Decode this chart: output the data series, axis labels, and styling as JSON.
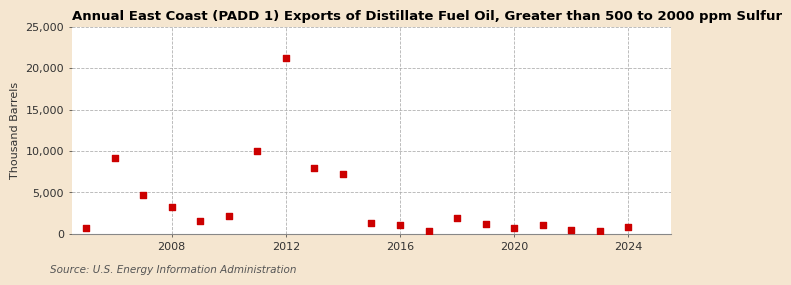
{
  "title": "Annual East Coast (PADD 1) Exports of Distillate Fuel Oil, Greater than 500 to 2000 ppm Sulfur",
  "ylabel": "Thousand Barrels",
  "source": "Source: U.S. Energy Information Administration",
  "figure_bg_color": "#f5e6d0",
  "plot_bg_color": "#ffffff",
  "marker_color": "#cc0000",
  "grid_color": "#aaaaaa",
  "years": [
    2005,
    2006,
    2007,
    2008,
    2009,
    2010,
    2011,
    2012,
    2013,
    2014,
    2015,
    2016,
    2017,
    2018,
    2019,
    2020,
    2021,
    2022,
    2023,
    2024
  ],
  "values": [
    700,
    9100,
    4700,
    3200,
    1500,
    2200,
    10000,
    21200,
    7900,
    7200,
    1300,
    1100,
    400,
    1900,
    1200,
    700,
    1100,
    500,
    300,
    800
  ],
  "xlim": [
    2004.5,
    2025.5
  ],
  "ylim": [
    0,
    25000
  ],
  "yticks": [
    0,
    5000,
    10000,
    15000,
    20000,
    25000
  ],
  "xticks": [
    2008,
    2012,
    2016,
    2020,
    2024
  ],
  "title_fontsize": 9.5,
  "label_fontsize": 8,
  "tick_fontsize": 8,
  "source_fontsize": 7.5
}
